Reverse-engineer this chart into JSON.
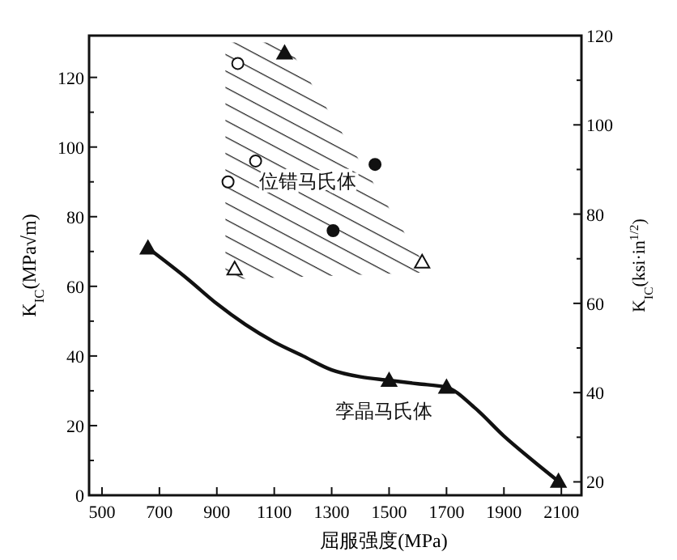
{
  "chart_data": {
    "type": "line",
    "xlabel": "屈服强度(MPa)",
    "ylabel": "K$_{IC}$(MPa√m)",
    "y2label": "K$_{IC}$(ksi·in$^{1/2}$)",
    "xlim": [
      455,
      2170
    ],
    "xticks": [
      500,
      700,
      900,
      1100,
      1300,
      1500,
      1700,
      1900,
      2100
    ],
    "ylim": [
      0,
      132
    ],
    "yticks": [
      0,
      {
        "value": 10,
        "label": null
      },
      20,
      {
        "value": 30,
        "label": null
      },
      40,
      {
        "value": 50,
        "label": null
      },
      60,
      {
        "value": 70,
        "label": null
      },
      80,
      {
        "value": 90,
        "label": null
      },
      100,
      {
        "value": 110,
        "label": null
      },
      120
    ],
    "y2lim": [
      17,
      120
    ],
    "y2ticks": [
      20,
      {
        "value": 30,
        "label": null
      },
      40,
      {
        "value": 50,
        "label": null
      },
      60,
      {
        "value": 70,
        "label": null
      },
      80,
      {
        "value": 90,
        "label": null
      },
      100,
      {
        "value": 110,
        "label": null
      },
      120
    ],
    "grid": false,
    "series": [
      {
        "color": "#111111",
        "marker": "none",
        "x": [
          660,
          800,
          900,
          1000,
          1100,
          1200,
          1300,
          1400,
          1500,
          1600,
          1700,
          1800,
          1900,
          2000,
          2090
        ],
        "values": [
          71,
          62,
          55,
          49,
          44,
          40,
          36,
          34,
          33,
          32,
          31,
          25,
          17,
          10,
          4
        ]
      },
      {
        "type": "scatter",
        "color": "#111111",
        "marker": "triangle",
        "x": [
          660,
          1500,
          1700,
          2090,
          1136
        ],
        "values": [
          71,
          33,
          31,
          4,
          127
        ]
      },
      {
        "type": "scatter",
        "color": "#ffffff",
        "marker": "circle",
        "x": [
          973,
          1035,
          939
        ],
        "values": [
          124,
          96,
          90
        ]
      },
      {
        "type": "scatter",
        "color": "#ffffff",
        "marker": "triangle",
        "x": [
          962,
          1615
        ],
        "values": [
          65,
          67
        ]
      },
      {
        "type": "scatter",
        "color": "#111111",
        "marker": "circle",
        "x": [
          1451,
          1305
        ],
        "values": [
          95,
          76
        ]
      }
    ],
    "annotations": [
      "位错马氏体",
      "孪晶马氏体"
    ]
  }
}
